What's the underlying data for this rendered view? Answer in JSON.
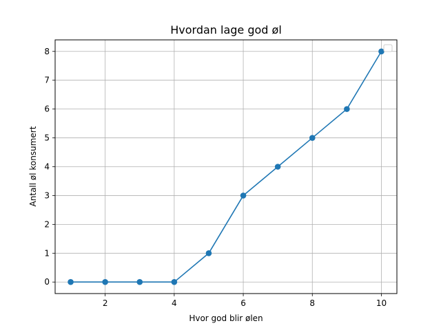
{
  "chart_data": {
    "type": "line",
    "title": "Hvordan lage god øl",
    "xlabel": "Hvor god blir ølen",
    "ylabel": "Antall øl konsumert",
    "x": [
      1,
      2,
      3,
      4,
      5,
      6,
      7,
      8,
      9,
      10
    ],
    "series": [
      {
        "values": [
          0,
          0,
          0,
          0,
          1,
          3,
          4,
          5,
          6,
          8
        ],
        "color": "#1f77b4",
        "marker": "circle"
      }
    ],
    "xlim": [
      0.55,
      10.45
    ],
    "ylim": [
      -0.4,
      8.4
    ],
    "xticks": [
      2,
      4,
      6,
      8,
      10
    ],
    "yticks": [
      0,
      1,
      2,
      3,
      4,
      5,
      6,
      7,
      8
    ],
    "grid": true,
    "legend": "top-right"
  }
}
